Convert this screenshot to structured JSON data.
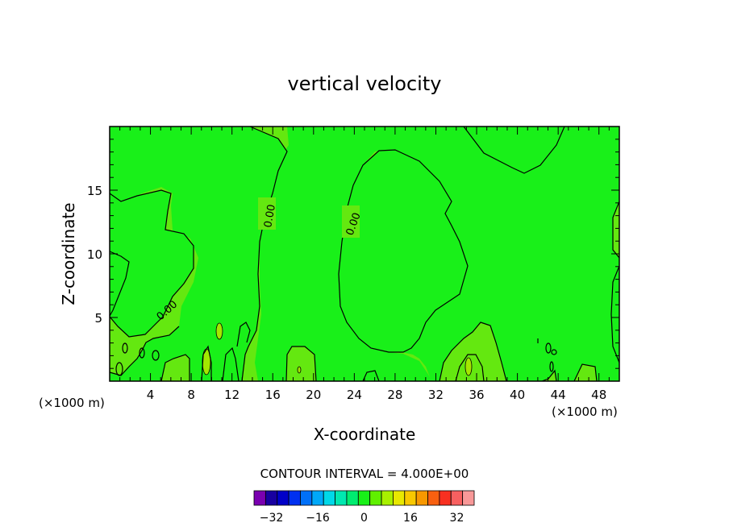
{
  "chart_data": {
    "type": "heatmap",
    "subtype": "filled-contour",
    "title": "vertical velocity",
    "xlabel": "X-coordinate",
    "ylabel": "Z-coordinate",
    "x_unit_left": "(×1000 m)",
    "x_unit_right": "(×1000 m)",
    "xlim": [
      0,
      50
    ],
    "ylim": [
      0,
      20
    ],
    "xticks": [
      4,
      8,
      12,
      16,
      20,
      24,
      28,
      32,
      36,
      40,
      44,
      48
    ],
    "yticks": [
      5,
      10,
      15
    ],
    "contour_labels": [
      "0.00",
      "0.00",
      "0.00"
    ],
    "contour_interval_text": "CONTOUR INTERVAL = 4.000E+00",
    "contour_interval": 4,
    "colorbar": {
      "colors": [
        "#7a00b0",
        "#1800a0",
        "#0000c8",
        "#0030f0",
        "#0070f8",
        "#00a8f8",
        "#00d8e8",
        "#00e8b0",
        "#00ec70",
        "#18f018",
        "#60f000",
        "#a8f000",
        "#e8e800",
        "#f8c800",
        "#f89800",
        "#f86010",
        "#f83020",
        "#f86060",
        "#f89898"
      ],
      "tick_labels": [
        "-32",
        "-16",
        "0",
        "16",
        "32"
      ]
    },
    "colors": {
      "band_positive_0_4": "#64e810",
      "band_negative_0_4": "#19f019",
      "band_4_8": "#a4e800"
    }
  }
}
